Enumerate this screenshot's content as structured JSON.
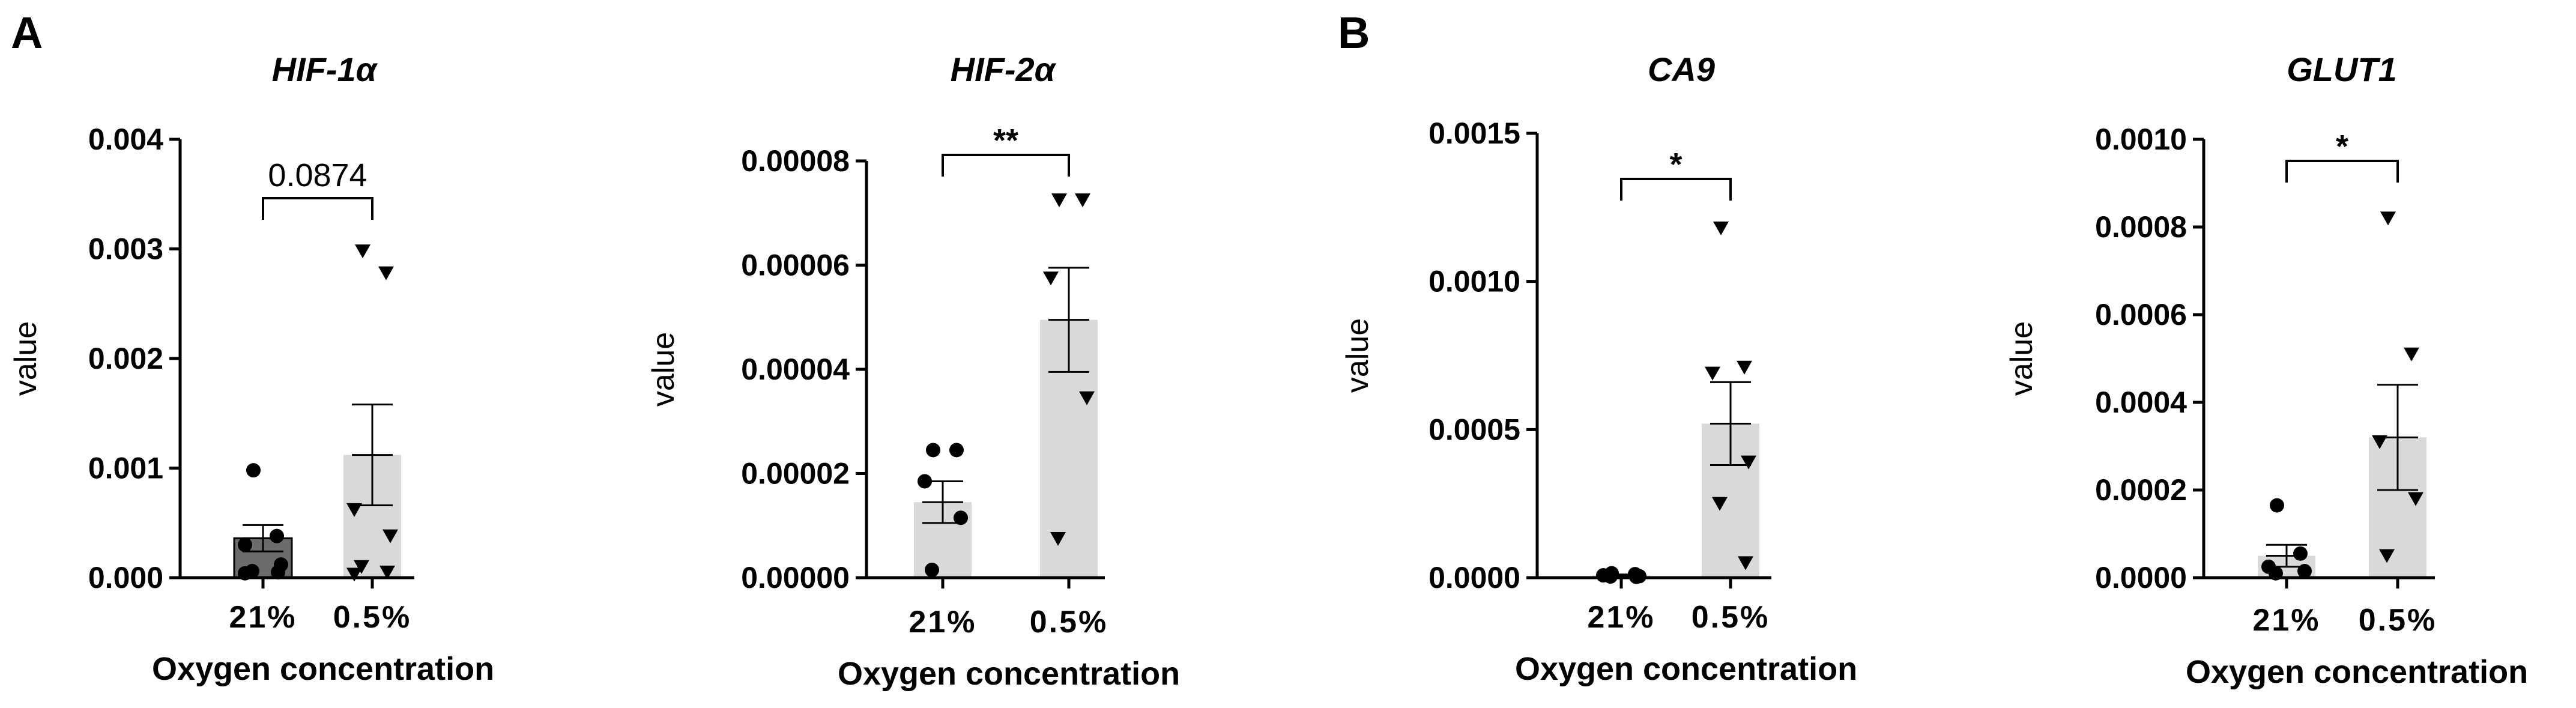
{
  "panels": {
    "A": "A",
    "B": "B"
  },
  "chart_data": [
    {
      "type": "bar",
      "panel": "A",
      "title": "HIF-1α",
      "xlabel": "Oxygen concentration",
      "ylabel": "value",
      "categories": [
        "21%",
        "0.5%"
      ],
      "ylim": [
        0,
        0.004
      ],
      "yticks": [
        0,
        0.001,
        0.002,
        0.003,
        0.004
      ],
      "ytick_labels": [
        "0.000",
        "0.001",
        "0.002",
        "0.003",
        "0.004"
      ],
      "means": [
        0.00036,
        0.00112
      ],
      "sem": [
        0.00012,
        0.00046
      ],
      "points": [
        [
          0.00098,
          0.00038,
          0.0003,
          0.00012,
          6e-05,
          5e-05,
          4e-05
        ],
        [
          0.00298,
          0.00278,
          0.00062,
          0.00038,
          0.0001,
          5e-05,
          3e-05
        ]
      ],
      "bar_colors": [
        "#6b6b6b",
        "#d9d9d9"
      ],
      "significance": "0.0874"
    },
    {
      "type": "bar",
      "panel": "A",
      "title": "HIF-2α",
      "xlabel": "Oxygen concentration",
      "ylabel": "value",
      "categories": [
        "21%",
        "0.5%"
      ],
      "ylim": [
        0,
        8e-05
      ],
      "yticks": [
        0,
        2e-05,
        4e-05,
        6e-05,
        8e-05
      ],
      "ytick_labels": [
        "0.00000",
        "0.00002",
        "0.00004",
        "0.00006",
        "0.00008"
      ],
      "means": [
        1.45e-05,
        4.95e-05
      ],
      "sem": [
        4e-06,
        1e-05
      ],
      "points": [
        [
          2.45e-05,
          2.45e-05,
          1.85e-05,
          1.15e-05,
          1.5e-06
        ],
        [
          7.25e-05,
          7.25e-05,
          5.75e-05,
          3.45e-05,
          7.5e-06
        ]
      ],
      "bar_colors": [
        "#d9d9d9",
        "#d9d9d9"
      ],
      "significance": "**"
    },
    {
      "type": "bar",
      "panel": "B",
      "title": "CA9",
      "xlabel": "Oxygen concentration",
      "ylabel": "value",
      "categories": [
        "21%",
        "0.5%"
      ],
      "ylim": [
        0,
        0.0015
      ],
      "yticks": [
        0,
        0.0005,
        0.001,
        0.0015
      ],
      "ytick_labels": [
        "0.0000",
        "0.0005",
        "0.0010",
        "0.0015"
      ],
      "means": [
        8e-06,
        0.00052
      ],
      "sem": [
        3e-06,
        0.00014
      ],
      "points": [
        [
          1.5e-05,
          1.2e-05,
          8e-06,
          5e-06,
          4e-06,
          3e-06
        ],
        [
          0.00118,
          0.00071,
          0.00069,
          0.00039,
          0.00025,
          5e-05
        ]
      ],
      "bar_colors": [
        "#d9d9d9",
        "#d9d9d9"
      ],
      "significance": "*"
    },
    {
      "type": "bar",
      "panel": "B",
      "title": "GLUT1",
      "xlabel": "Oxygen concentration",
      "ylabel": "value",
      "categories": [
        "21%",
        "0.5%"
      ],
      "ylim": [
        0,
        0.001
      ],
      "yticks": [
        0,
        0.0002,
        0.0004,
        0.0006,
        0.0008,
        0.001
      ],
      "ytick_labels": [
        "0.0000",
        "0.0002",
        "0.0004",
        "0.0006",
        "0.0008",
        "0.0010"
      ],
      "means": [
        5e-05,
        0.00032
      ],
      "sem": [
        2.5e-05,
        0.00012
      ],
      "points": [
        [
          0.000165,
          5.5e-05,
          2.5e-05,
          1.5e-05,
          1e-05
        ],
        [
          0.00082,
          0.00051,
          0.00031,
          0.00018,
          5e-05
        ]
      ],
      "bar_colors": [
        "#d9d9d9",
        "#d9d9d9"
      ],
      "significance": "*"
    }
  ]
}
